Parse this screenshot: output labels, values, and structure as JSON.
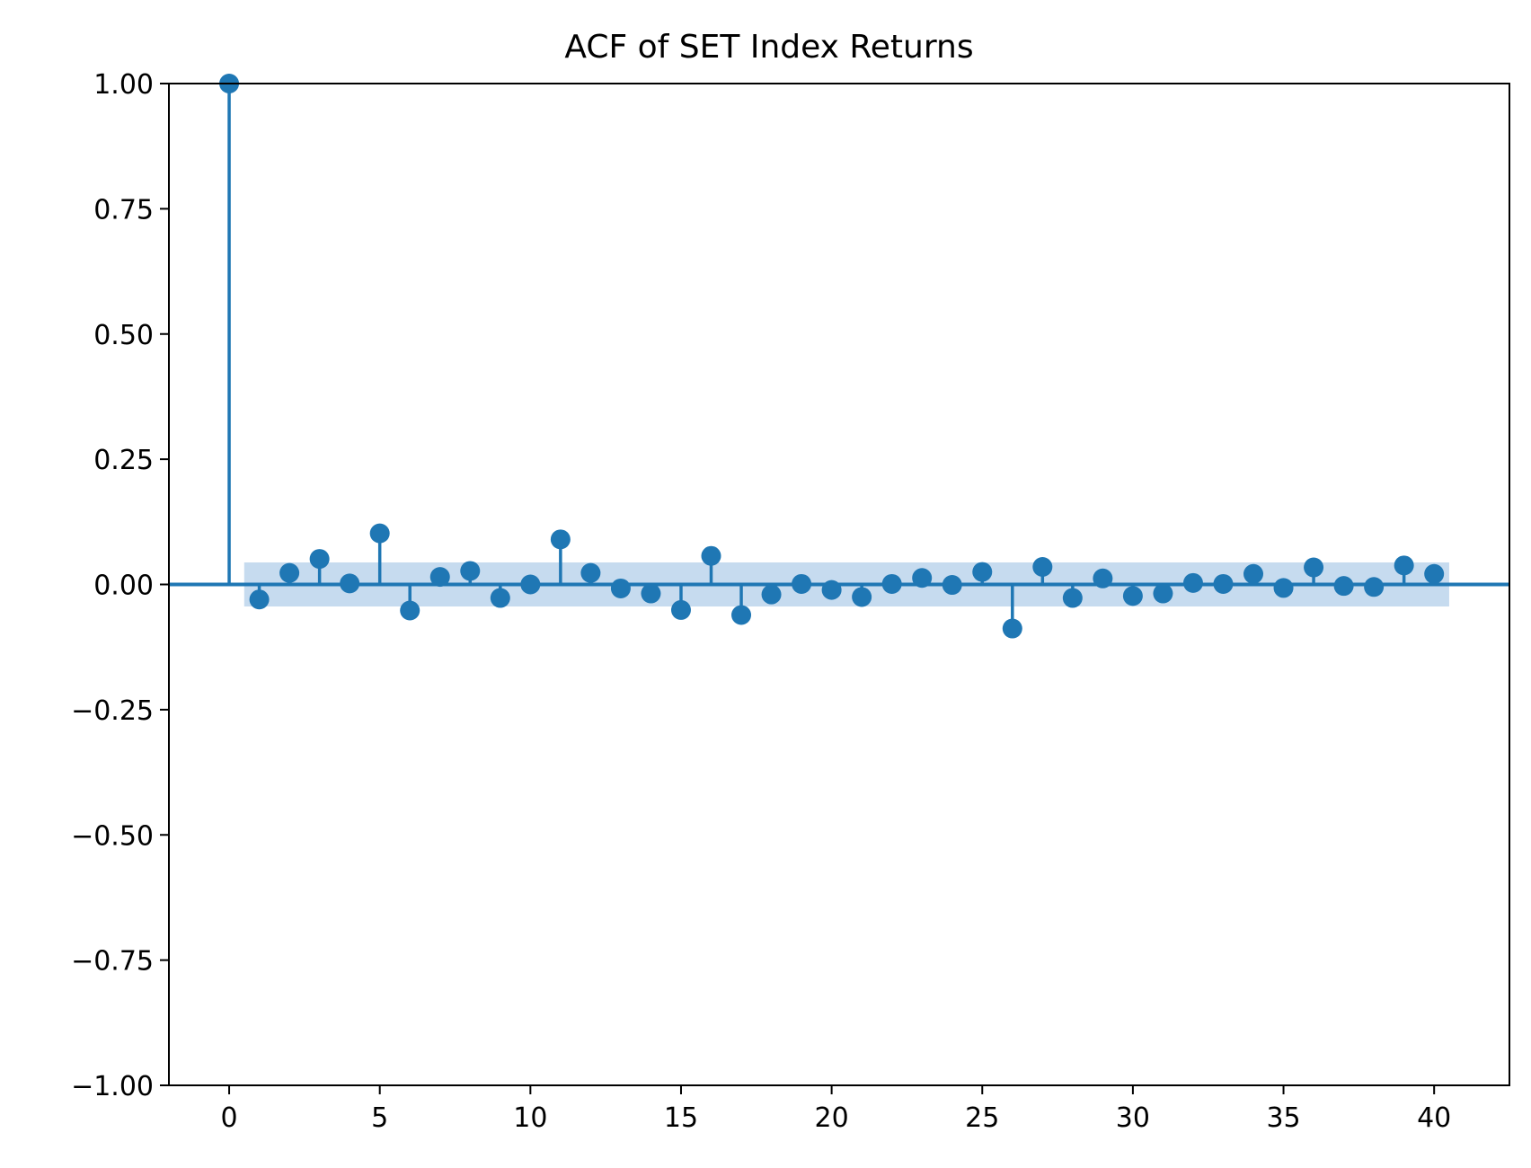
{
  "chart_data": {
    "type": "stem",
    "title": "ACF of SET Index Returns",
    "xlabel": "",
    "ylabel": "",
    "xlim": [
      -2,
      42.5
    ],
    "ylim": [
      -1.0,
      1.0
    ],
    "x_ticks": [
      0,
      5,
      10,
      15,
      20,
      25,
      30,
      35,
      40
    ],
    "x_tick_labels": [
      "0",
      "5",
      "10",
      "15",
      "20",
      "25",
      "30",
      "35",
      "40"
    ],
    "y_ticks": [
      1.0,
      0.75,
      0.5,
      0.25,
      0.0,
      -0.25,
      -0.5,
      -0.75,
      -1.0
    ],
    "y_tick_labels": [
      "1.00",
      "0.75",
      "0.50",
      "0.25",
      "0.00",
      "−0.25",
      "−0.50",
      "−0.75",
      "−1.00"
    ],
    "lags": [
      0,
      1,
      2,
      3,
      4,
      5,
      6,
      7,
      8,
      9,
      10,
      11,
      12,
      13,
      14,
      15,
      16,
      17,
      18,
      19,
      20,
      21,
      22,
      23,
      24,
      25,
      26,
      27,
      28,
      29,
      30,
      31,
      32,
      33,
      34,
      35,
      36,
      37,
      38,
      39,
      40
    ],
    "acf": [
      1.0,
      -0.03,
      0.023,
      0.051,
      0.002,
      0.102,
      -0.052,
      0.015,
      0.027,
      -0.027,
      0.0,
      0.09,
      0.023,
      -0.008,
      -0.018,
      -0.051,
      0.057,
      -0.061,
      -0.02,
      0.001,
      -0.011,
      -0.025,
      0.001,
      0.013,
      -0.001,
      0.025,
      -0.088,
      0.035,
      -0.027,
      0.012,
      -0.023,
      -0.018,
      0.003,
      0.001,
      0.021,
      -0.007,
      0.034,
      -0.003,
      -0.005,
      0.038,
      0.021
    ],
    "confidence_band": {
      "from_lag": 0.5,
      "to_lag": 40.5,
      "lower": -0.044,
      "upper": 0.044
    },
    "grid": false,
    "colors": {
      "stem": "#1f77b4",
      "band": "#c6dbef",
      "axes": "#000000"
    }
  }
}
